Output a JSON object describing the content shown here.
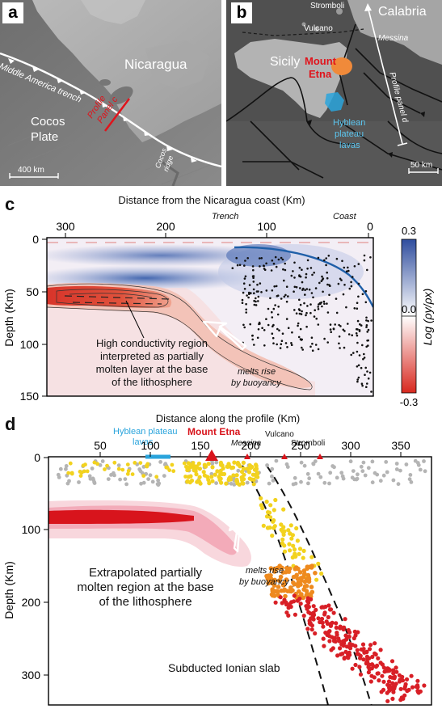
{
  "panel_a": {
    "letter": "a",
    "country": "Nicaragua",
    "trench": "Middle America trench",
    "plate_line1": "Cocos",
    "plate_line2": "Plate",
    "profile_line1": "Profile",
    "profile_line2": "Panel c",
    "ridge_line1": "Cocos",
    "ridge_line2": "ridge",
    "scale": "400 km"
  },
  "panel_b": {
    "letter": "b",
    "stromboli": "Stromboli",
    "vulcano": "Vulcano",
    "calabria": "Calabria",
    "messina": "Messina",
    "sicily": "Sicily",
    "etna_line1": "Mount",
    "etna_line2": "Etna",
    "hyblean_line1": "Hyblean",
    "hyblean_line2": "plateau",
    "hyblean_line3": "lavas",
    "profile": "Profile panel d",
    "scale": "50 km"
  },
  "panel_c": {
    "letter": "c",
    "title": "Distance from the Nicaragua coast (Km)",
    "x_ticks": [
      "300",
      "200",
      "100",
      "0"
    ],
    "trench": "Trench",
    "coast": "Coast",
    "y_label": "Depth (Km)",
    "y_ticks": [
      "0",
      "50",
      "100",
      "150"
    ],
    "colorbar_label": "Log (ρy/ρx)",
    "colorbar_ticks": [
      "0.3",
      "0.0",
      "-0.3"
    ],
    "annotation_line1": "High conductivity region",
    "annotation_line2": "interpreted as partially",
    "annotation_line3": "molten layer at the base",
    "annotation_line4": "of the lithosphere",
    "melts_line1": "melts rise",
    "melts_line2": "by buoyancy",
    "colors": {
      "positive": "#2f55a4",
      "negative": "#d8342a",
      "slab": "#1f5fa8"
    }
  },
  "panel_d": {
    "letter": "d",
    "title": "Distance along the profile (Km)",
    "x_ticks": [
      "50",
      "100",
      "150",
      "200",
      "250",
      "300",
      "350"
    ],
    "y_label": "Depth (Km)",
    "y_ticks": [
      "0",
      "100",
      "200",
      "300"
    ],
    "hyblean_line1": "Hyblean plateau",
    "hyblean_line2": "lavas",
    "etna": "Mount Etna",
    "messina": "Messina",
    "vulcano": "Vulcano",
    "stromboli": "Stromboli",
    "annotation_line1": "Extrapolated partially",
    "annotation_line2": "molten region at the base",
    "annotation_line3": "of the lithosphere",
    "melts_line1": "melts rise",
    "melts_line2": "by buoyancy",
    "slab_label": "Subducted Ionian slab",
    "colors": {
      "etna": "#d8141c",
      "hyblean": "#2aa4dc",
      "shallow": "#f2d21e",
      "mid": "#ee8a1e",
      "deep": "#d81f26",
      "gray": "#b4b4b4"
    }
  }
}
